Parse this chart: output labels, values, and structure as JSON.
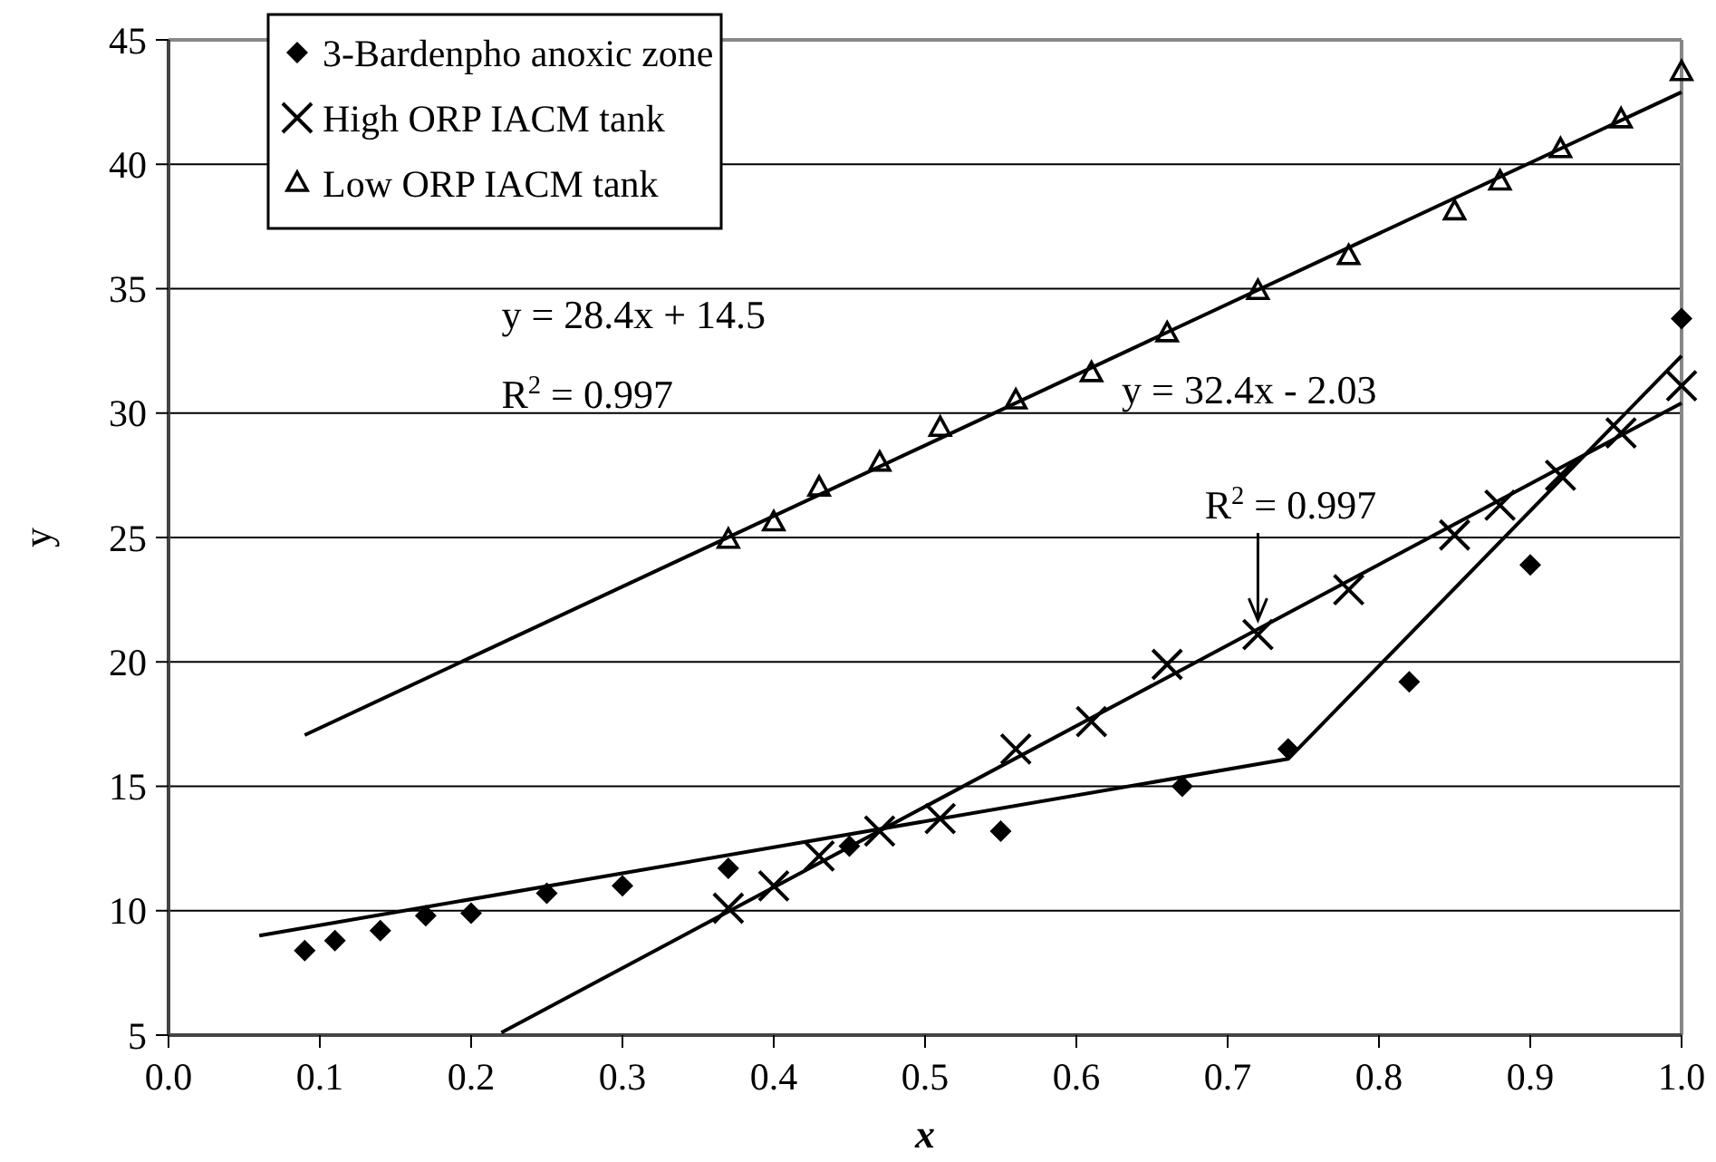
{
  "chart_data": {
    "type": "scatter",
    "xlabel": "x",
    "ylabel": "y",
    "xlim": [
      0,
      1
    ],
    "xticks": [
      {
        "value": 0,
        "label": "0.0"
      },
      0.1,
      0.2,
      0.3,
      0.4,
      0.5,
      0.6,
      0.7,
      0.8,
      0.9,
      {
        "value": 1,
        "label": "1.0"
      }
    ],
    "ylim": [
      5,
      45
    ],
    "yticks": [
      5,
      10,
      15,
      20,
      25,
      30,
      35,
      40,
      45
    ],
    "grid": "y",
    "legend": "top left",
    "series": [
      {
        "name": "3-Bardenpho anoxic zone",
        "color": "#000000",
        "marker": "diamond",
        "x": [
          0.09,
          0.11,
          0.14,
          0.17,
          0.2,
          0.25,
          0.3,
          0.37,
          0.45,
          0.55,
          0.67,
          0.74,
          0.82,
          0.9,
          1.0
        ],
        "values": [
          8.4,
          8.8,
          9.2,
          9.8,
          9.9,
          10.7,
          11.0,
          11.7,
          12.6,
          13.2,
          15.0,
          16.5,
          19.2,
          23.9,
          33.8
        ]
      },
      {
        "name": "High ORP IACM tank",
        "color": "#000000",
        "marker": "cross",
        "x": [
          0.37,
          0.4,
          0.43,
          0.47,
          0.51,
          0.56,
          0.61,
          0.66,
          0.72,
          0.78,
          0.85,
          0.88,
          0.92,
          0.96,
          1.0
        ],
        "values": [
          10.1,
          11.0,
          12.2,
          13.2,
          13.7,
          16.5,
          17.6,
          19.9,
          21.1,
          22.9,
          25.1,
          26.3,
          27.5,
          29.2,
          31.1
        ]
      },
      {
        "name": "Low ORP IACM tank",
        "color": "#000000",
        "marker": "triangle",
        "x": [
          0.37,
          0.4,
          0.43,
          0.47,
          0.51,
          0.56,
          0.61,
          0.66,
          0.72,
          0.78,
          0.85,
          0.88,
          0.92,
          0.96,
          1.0
        ],
        "values": [
          24.9,
          25.6,
          27.0,
          28.0,
          29.4,
          30.5,
          31.6,
          33.2,
          34.9,
          36.3,
          38.1,
          39.3,
          40.6,
          41.8,
          43.7
        ]
      },
      {
        "type": "line",
        "color": "#000000",
        "marker": "none",
        "x": [
          0.09,
          1.0
        ],
        "values": [
          17.06,
          42.9
        ]
      },
      {
        "type": "line",
        "color": "#000000",
        "marker": "none",
        "x": [
          0.06,
          0.74,
          1.0
        ],
        "values": [
          9.0,
          16.1,
          32.3
        ]
      },
      {
        "type": "line",
        "color": "#000000",
        "marker": "none",
        "x": [
          0.22,
          1.0
        ],
        "values": [
          5.1,
          30.4
        ]
      }
    ],
    "annotations": [
      "y = 28.4x + 14.5",
      "R$^{2}$ = 0.997",
      "y = 32.4x - 2.03",
      {
        "text": "R$^{2}$ = 0.997",
        "x": 0.72,
        "y": 21.1
      }
    ]
  }
}
